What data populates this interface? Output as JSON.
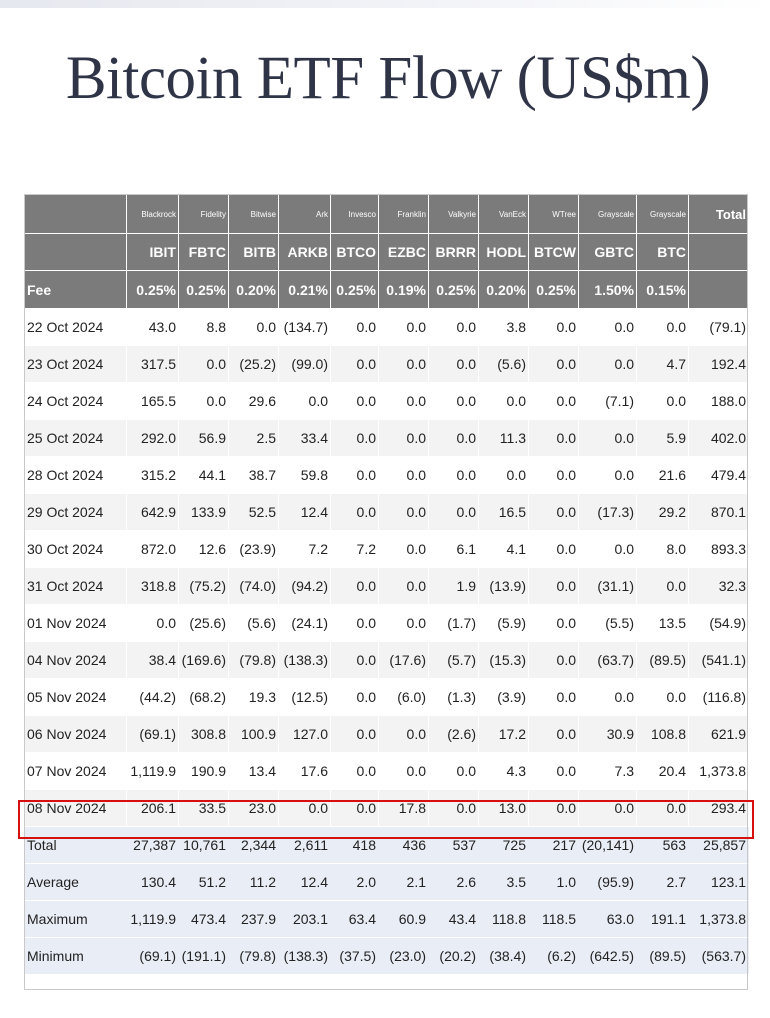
{
  "title": "Bitcoin ETF Flow (US$m)",
  "chart_data": {
    "type": "table",
    "title": "Bitcoin ETF Flow (US$m)",
    "issuers": [
      "Blackrock",
      "Fidelity",
      "Bitwise",
      "Ark",
      "Invesco",
      "Franklin",
      "Valkyrie",
      "VanEck",
      "WTree",
      "Grayscale",
      "Grayscale",
      "Total"
    ],
    "tickers": [
      "IBIT",
      "FBTC",
      "BITB",
      "ARKB",
      "BTCO",
      "EZBC",
      "BRRR",
      "HODL",
      "BTCW",
      "GBTC",
      "BTC",
      ""
    ],
    "fee_label": "Fee",
    "fees": [
      "0.25%",
      "0.25%",
      "0.20%",
      "0.21%",
      "0.25%",
      "0.19%",
      "0.25%",
      "0.20%",
      "0.25%",
      "1.50%",
      "0.15%",
      ""
    ],
    "rows": [
      {
        "date": "22 Oct 2024",
        "values": [
          "43.0",
          "8.8",
          "0.0",
          "(134.7)",
          "0.0",
          "0.0",
          "0.0",
          "3.8",
          "0.0",
          "0.0",
          "0.0",
          "(79.1)"
        ]
      },
      {
        "date": "23 Oct 2024",
        "values": [
          "317.5",
          "0.0",
          "(25.2)",
          "(99.0)",
          "0.0",
          "0.0",
          "0.0",
          "(5.6)",
          "0.0",
          "0.0",
          "4.7",
          "192.4"
        ]
      },
      {
        "date": "24 Oct 2024",
        "values": [
          "165.5",
          "0.0",
          "29.6",
          "0.0",
          "0.0",
          "0.0",
          "0.0",
          "0.0",
          "0.0",
          "(7.1)",
          "0.0",
          "188.0"
        ]
      },
      {
        "date": "25 Oct 2024",
        "values": [
          "292.0",
          "56.9",
          "2.5",
          "33.4",
          "0.0",
          "0.0",
          "0.0",
          "11.3",
          "0.0",
          "0.0",
          "5.9",
          "402.0"
        ]
      },
      {
        "date": "28 Oct 2024",
        "values": [
          "315.2",
          "44.1",
          "38.7",
          "59.8",
          "0.0",
          "0.0",
          "0.0",
          "0.0",
          "0.0",
          "0.0",
          "21.6",
          "479.4"
        ]
      },
      {
        "date": "29 Oct 2024",
        "values": [
          "642.9",
          "133.9",
          "52.5",
          "12.4",
          "0.0",
          "0.0",
          "0.0",
          "16.5",
          "0.0",
          "(17.3)",
          "29.2",
          "870.1"
        ]
      },
      {
        "date": "30 Oct 2024",
        "values": [
          "872.0",
          "12.6",
          "(23.9)",
          "7.2",
          "7.2",
          "0.0",
          "6.1",
          "4.1",
          "0.0",
          "0.0",
          "8.0",
          "893.3"
        ]
      },
      {
        "date": "31 Oct 2024",
        "values": [
          "318.8",
          "(75.2)",
          "(74.0)",
          "(94.2)",
          "0.0",
          "0.0",
          "1.9",
          "(13.9)",
          "0.0",
          "(31.1)",
          "0.0",
          "32.3"
        ]
      },
      {
        "date": "01 Nov 2024",
        "values": [
          "0.0",
          "(25.6)",
          "(5.6)",
          "(24.1)",
          "0.0",
          "0.0",
          "(1.7)",
          "(5.9)",
          "0.0",
          "(5.5)",
          "13.5",
          "(54.9)"
        ]
      },
      {
        "date": "04 Nov 2024",
        "values": [
          "38.4",
          "(169.6)",
          "(79.8)",
          "(138.3)",
          "0.0",
          "(17.6)",
          "(5.7)",
          "(15.3)",
          "0.0",
          "(63.7)",
          "(89.5)",
          "(541.1)"
        ]
      },
      {
        "date": "05 Nov 2024",
        "values": [
          "(44.2)",
          "(68.2)",
          "19.3",
          "(12.5)",
          "0.0",
          "(6.0)",
          "(1.3)",
          "(3.9)",
          "0.0",
          "0.0",
          "0.0",
          "(116.8)"
        ]
      },
      {
        "date": "06 Nov 2024",
        "values": [
          "(69.1)",
          "308.8",
          "100.9",
          "127.0",
          "0.0",
          "0.0",
          "(2.6)",
          "17.2",
          "0.0",
          "30.9",
          "108.8",
          "621.9"
        ]
      },
      {
        "date": "07 Nov 2024",
        "values": [
          "1,119.9",
          "190.9",
          "13.4",
          "17.6",
          "0.0",
          "0.0",
          "0.0",
          "4.3",
          "0.0",
          "7.3",
          "20.4",
          "1,373.8"
        ]
      },
      {
        "date": "08 Nov 2024",
        "values": [
          "206.1",
          "33.5",
          "23.0",
          "0.0",
          "0.0",
          "17.8",
          "0.0",
          "13.0",
          "0.0",
          "0.0",
          "0.0",
          "293.4"
        ],
        "highlighted": true
      }
    ],
    "summary": [
      {
        "label": "Total",
        "values": [
          "27,387",
          "10,761",
          "2,344",
          "2,611",
          "418",
          "436",
          "537",
          "725",
          "217",
          "(20,141)",
          "563",
          "25,857"
        ]
      },
      {
        "label": "Average",
        "values": [
          "130.4",
          "51.2",
          "11.2",
          "12.4",
          "2.0",
          "2.1",
          "2.6",
          "3.5",
          "1.0",
          "(95.9)",
          "2.7",
          "123.1"
        ]
      },
      {
        "label": "Maximum",
        "values": [
          "1,119.9",
          "473.4",
          "237.9",
          "203.1",
          "63.4",
          "60.9",
          "43.4",
          "118.8",
          "118.5",
          "63.0",
          "191.1",
          "1,373.8"
        ]
      },
      {
        "label": "Minimum",
        "values": [
          "(69.1)",
          "(191.1)",
          "(79.8)",
          "(138.3)",
          "(37.5)",
          "(23.0)",
          "(20.2)",
          "(38.4)",
          "(6.2)",
          "(642.5)",
          "(89.5)",
          "(563.7)"
        ]
      }
    ],
    "colors": {
      "header_bg": "#7b7b7b",
      "negative": "#d1211c",
      "highlight_border": "#d60f0f",
      "summary_bg": "#e9edf6",
      "title": "#303447"
    }
  }
}
